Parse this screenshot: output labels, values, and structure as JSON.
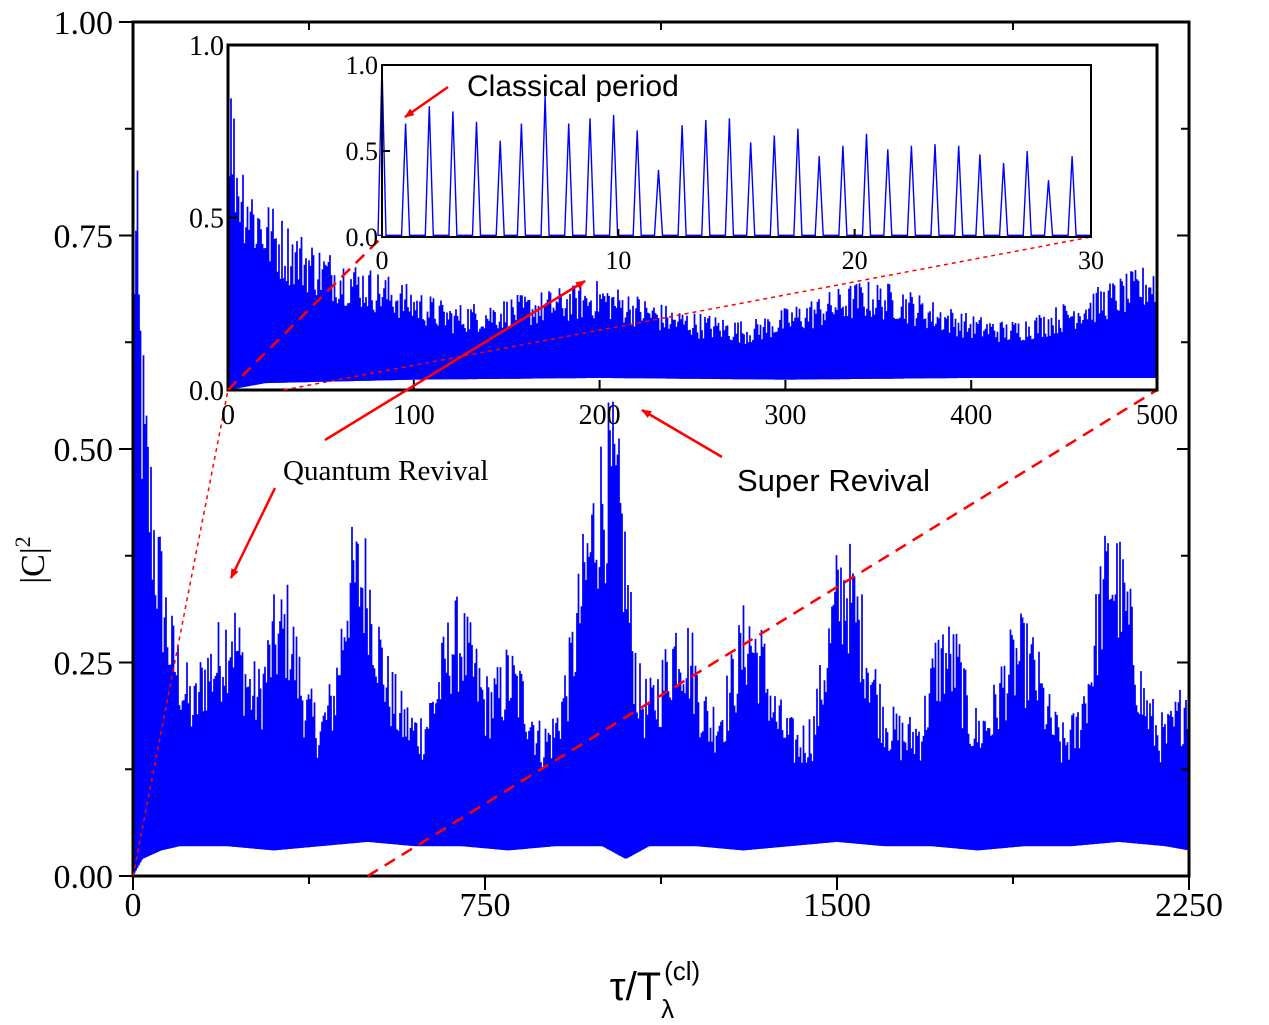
{
  "chart_data": [
    {
      "id": "main",
      "type": "line",
      "xlabel": "τ/T",
      "xlabel_sub": "λ",
      "xlabel_sup": "(cl)",
      "ylabel": "|C|",
      "ylabel_sup": "2",
      "xlim": [
        0,
        2250
      ],
      "ylim": [
        0,
        1
      ],
      "xticks": [
        0,
        750,
        1500,
        2250
      ],
      "xtick_labels": [
        "0",
        "750",
        "1500",
        "2250"
      ],
      "yticks": [
        0,
        0.25,
        0.5,
        0.75,
        1
      ],
      "ytick_labels": [
        "0.00",
        "0.25",
        "0.50",
        "0.75",
        "1.00"
      ],
      "grid": false,
      "line_color": "#0000ff",
      "series": [
        {
          "envelope_upper": {
            "x": [
              0,
              10,
              25,
              50,
              80,
              110,
              130,
              150,
              180,
              200,
              210,
              230,
              250,
              270,
              300,
              330,
              350,
              370,
              400,
              430,
              460,
              480,
              500,
              520,
              540,
              570,
              600,
              620,
              650,
              680,
              700,
              730,
              750,
              780,
              800,
              830,
              850,
              870,
              900,
              930,
              960,
              990,
              1020,
              1040,
              1060,
              1080,
              1100,
              1130,
              1160,
              1190,
              1210,
              1230,
              1260,
              1290,
              1310,
              1340,
              1370,
              1400,
              1420,
              1450,
              1480,
              1500,
              1520,
              1540,
              1560,
              1590,
              1620,
              1650,
              1680,
              1710,
              1730,
              1760,
              1780,
              1800,
              1830,
              1860,
              1890,
              1920,
              1950,
              1980,
              2010,
              2040,
              2060,
              2080,
              2100,
              2120,
              2150,
              2180,
              2200,
              2220,
              2240,
              2250
            ],
            "y": [
              1.0,
              0.82,
              0.6,
              0.45,
              0.32,
              0.26,
              0.23,
              0.28,
              0.3,
              0.33,
              0.35,
              0.3,
              0.26,
              0.25,
              0.33,
              0.35,
              0.29,
              0.23,
              0.2,
              0.25,
              0.41,
              0.42,
              0.41,
              0.33,
              0.27,
              0.22,
              0.2,
              0.2,
              0.26,
              0.33,
              0.33,
              0.28,
              0.24,
              0.25,
              0.28,
              0.25,
              0.22,
              0.18,
              0.2,
              0.28,
              0.41,
              0.52,
              0.57,
              0.5,
              0.35,
              0.25,
              0.23,
              0.27,
              0.33,
              0.3,
              0.24,
              0.21,
              0.23,
              0.3,
              0.34,
              0.3,
              0.22,
              0.19,
              0.18,
              0.2,
              0.31,
              0.39,
              0.41,
              0.37,
              0.32,
              0.24,
              0.2,
              0.19,
              0.2,
              0.29,
              0.31,
              0.29,
              0.22,
              0.2,
              0.22,
              0.28,
              0.31,
              0.29,
              0.22,
              0.18,
              0.2,
              0.28,
              0.38,
              0.43,
              0.41,
              0.36,
              0.25,
              0.2,
              0.19,
              0.21,
              0.24,
              0.27
            ]
          },
          "envelope_lower": {
            "x": [
              0,
              20,
              60,
              100,
              200,
              300,
              400,
              500,
              600,
              700,
              800,
              900,
              1000,
              1050,
              1100,
              1200,
              1300,
              1400,
              1500,
              1600,
              1700,
              1800,
              1900,
              2000,
              2100,
              2200,
              2250
            ],
            "y": [
              0.0,
              0.02,
              0.03,
              0.035,
              0.035,
              0.03,
              0.035,
              0.04,
              0.035,
              0.035,
              0.03,
              0.035,
              0.035,
              0.02,
              0.035,
              0.035,
              0.03,
              0.035,
              0.04,
              0.035,
              0.035,
              0.03,
              0.035,
              0.035,
              0.04,
              0.035,
              0.03
            ]
          }
        }
      ],
      "annotations": [
        {
          "id": "quantum-revival",
          "text": "Quantum Revival"
        },
        {
          "id": "super-revival",
          "text": "Super Revival"
        }
      ],
      "zoom_lines": [
        {
          "from_x": 0,
          "to_inset": "inset1-origin",
          "style": "dotted"
        },
        {
          "from_x": 500,
          "to_inset": "inset1-right",
          "style": "dashed"
        }
      ]
    },
    {
      "id": "inset1",
      "type": "line",
      "xlim": [
        0,
        500
      ],
      "ylim": [
        0,
        1
      ],
      "xticks": [
        0,
        100,
        200,
        300,
        400,
        500
      ],
      "xtick_labels": [
        "0",
        "100",
        "200",
        "300",
        "400",
        "500"
      ],
      "yticks": [
        0,
        0.5,
        1
      ],
      "ytick_labels": [
        "0.0",
        "0.5",
        "1.0"
      ],
      "line_color": "#0000ff",
      "series": [
        {
          "envelope_upper": {
            "x": [
              0,
              5,
              15,
              30,
              50,
              80,
              100,
              120,
              140,
              160,
              180,
              200,
              220,
              240,
              260,
              280,
              300,
              320,
              340,
              360,
              380,
              400,
              420,
              440,
              460,
              480,
              500
            ],
            "y": [
              1.0,
              0.75,
              0.6,
              0.5,
              0.42,
              0.35,
              0.3,
              0.25,
              0.26,
              0.28,
              0.3,
              0.32,
              0.28,
              0.24,
              0.22,
              0.2,
              0.24,
              0.28,
              0.32,
              0.31,
              0.26,
              0.22,
              0.2,
              0.23,
              0.28,
              0.33,
              0.38
            ]
          },
          "envelope_lower": {
            "x": [
              0,
              20,
              100,
              200,
              300,
              400,
              500
            ],
            "y": [
              0.0,
              0.02,
              0.03,
              0.035,
              0.03,
              0.035,
              0.035
            ]
          }
        }
      ],
      "zoom_lines": [
        {
          "from_x": 0,
          "to_inset": "inset2-origin",
          "style": "dashed"
        },
        {
          "from_x": 30,
          "to_inset": "inset2-right",
          "style": "dotted"
        }
      ]
    },
    {
      "id": "inset2",
      "type": "line",
      "xlim": [
        0,
        30
      ],
      "ylim": [
        0,
        1
      ],
      "xticks": [
        0,
        10,
        20,
        30
      ],
      "xtick_labels": [
        "0",
        "10",
        "20",
        "30"
      ],
      "yticks": [
        0,
        0.5,
        1
      ],
      "ytick_labels": [
        "0.0",
        "0.5",
        "1.0"
      ],
      "line_color": "#0000ff",
      "series": [
        {
          "peak_x": [
            0,
            1.0,
            2.0,
            3.0,
            4.0,
            5.0,
            5.9,
            6.9,
            7.9,
            8.8,
            9.8,
            10.8,
            11.7,
            12.7,
            13.7,
            14.7,
            15.6,
            16.6,
            17.6,
            18.5,
            19.5,
            20.5,
            21.4,
            22.4,
            23.4,
            24.4,
            25.3,
            26.3,
            27.3,
            28.2,
            29.2
          ],
          "peak_y": [
            1.0,
            0.66,
            0.76,
            0.73,
            0.67,
            0.56,
            0.66,
            0.82,
            0.66,
            0.69,
            0.71,
            0.62,
            0.39,
            0.65,
            0.68,
            0.69,
            0.55,
            0.59,
            0.63,
            0.47,
            0.53,
            0.6,
            0.51,
            0.53,
            0.54,
            0.53,
            0.48,
            0.43,
            0.5,
            0.33,
            0.47
          ],
          "baseline": 0.01
        }
      ],
      "annotations": [
        {
          "id": "classical-period",
          "text": "Classical period"
        }
      ]
    }
  ]
}
